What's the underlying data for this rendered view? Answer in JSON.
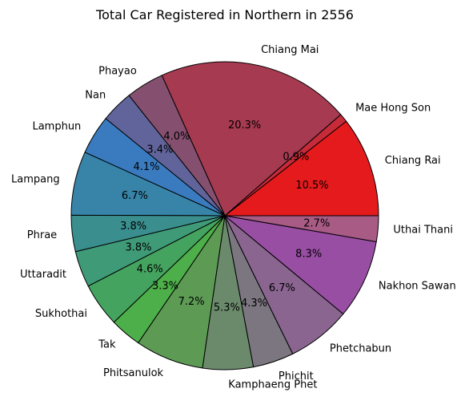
{
  "chart_data": {
    "type": "pie",
    "title": "Total Car Registered in Northern in 2556",
    "start_angle_deg": 0,
    "direction": "counterclockwise",
    "slices": [
      {
        "label": "Chiang Rai",
        "pct_label": "10.5%",
        "value": 10.5,
        "color": "#e41a1c"
      },
      {
        "label": "Mae Hong Son",
        "pct_label": "0.9%",
        "value": 0.9,
        "color": "#c72a38"
      },
      {
        "label": "Chiang Mai",
        "pct_label": "20.3%",
        "value": 20.3,
        "color": "#a63a50"
      },
      {
        "label": "Phayao",
        "pct_label": "4.0%",
        "value": 4.0,
        "color": "#85506f"
      },
      {
        "label": "Nan",
        "pct_label": "3.4%",
        "value": 3.4,
        "color": "#60649a"
      },
      {
        "label": "Lamphun",
        "pct_label": "4.1%",
        "value": 4.1,
        "color": "#3a7bbf"
      },
      {
        "label": "Lampang",
        "pct_label": "6.7%",
        "value": 6.7,
        "color": "#3784a8"
      },
      {
        "label": "Phrae",
        "pct_label": "3.8%",
        "value": 3.8,
        "color": "#3a8e8e"
      },
      {
        "label": "Uttaradit",
        "pct_label": "3.8%",
        "value": 3.8,
        "color": "#3f9a78"
      },
      {
        "label": "Sukhothai",
        "pct_label": "4.6%",
        "value": 4.6,
        "color": "#44a35f"
      },
      {
        "label": "Tak",
        "pct_label": "3.3%",
        "value": 3.3,
        "color": "#4daf4a"
      },
      {
        "label": "Phitsanulok",
        "pct_label": "7.2%",
        "value": 7.2,
        "color": "#5d9b55"
      },
      {
        "label": "Kamphaeng Phet",
        "pct_label": "5.3%",
        "value": 5.3,
        "color": "#6b8a6b"
      },
      {
        "label": "Phichit",
        "pct_label": "4.3%",
        "value": 4.3,
        "color": "#7b7680"
      },
      {
        "label": "Phetchabun",
        "pct_label": "6.7%",
        "value": 6.7,
        "color": "#8a6590"
      },
      {
        "label": "Nakhon Sawan",
        "pct_label": "8.3%",
        "value": 8.3,
        "color": "#984ea3"
      },
      {
        "label": "Uthai Thani",
        "pct_label": "2.7%",
        "value": 2.7,
        "color": "#a85b85"
      }
    ]
  }
}
